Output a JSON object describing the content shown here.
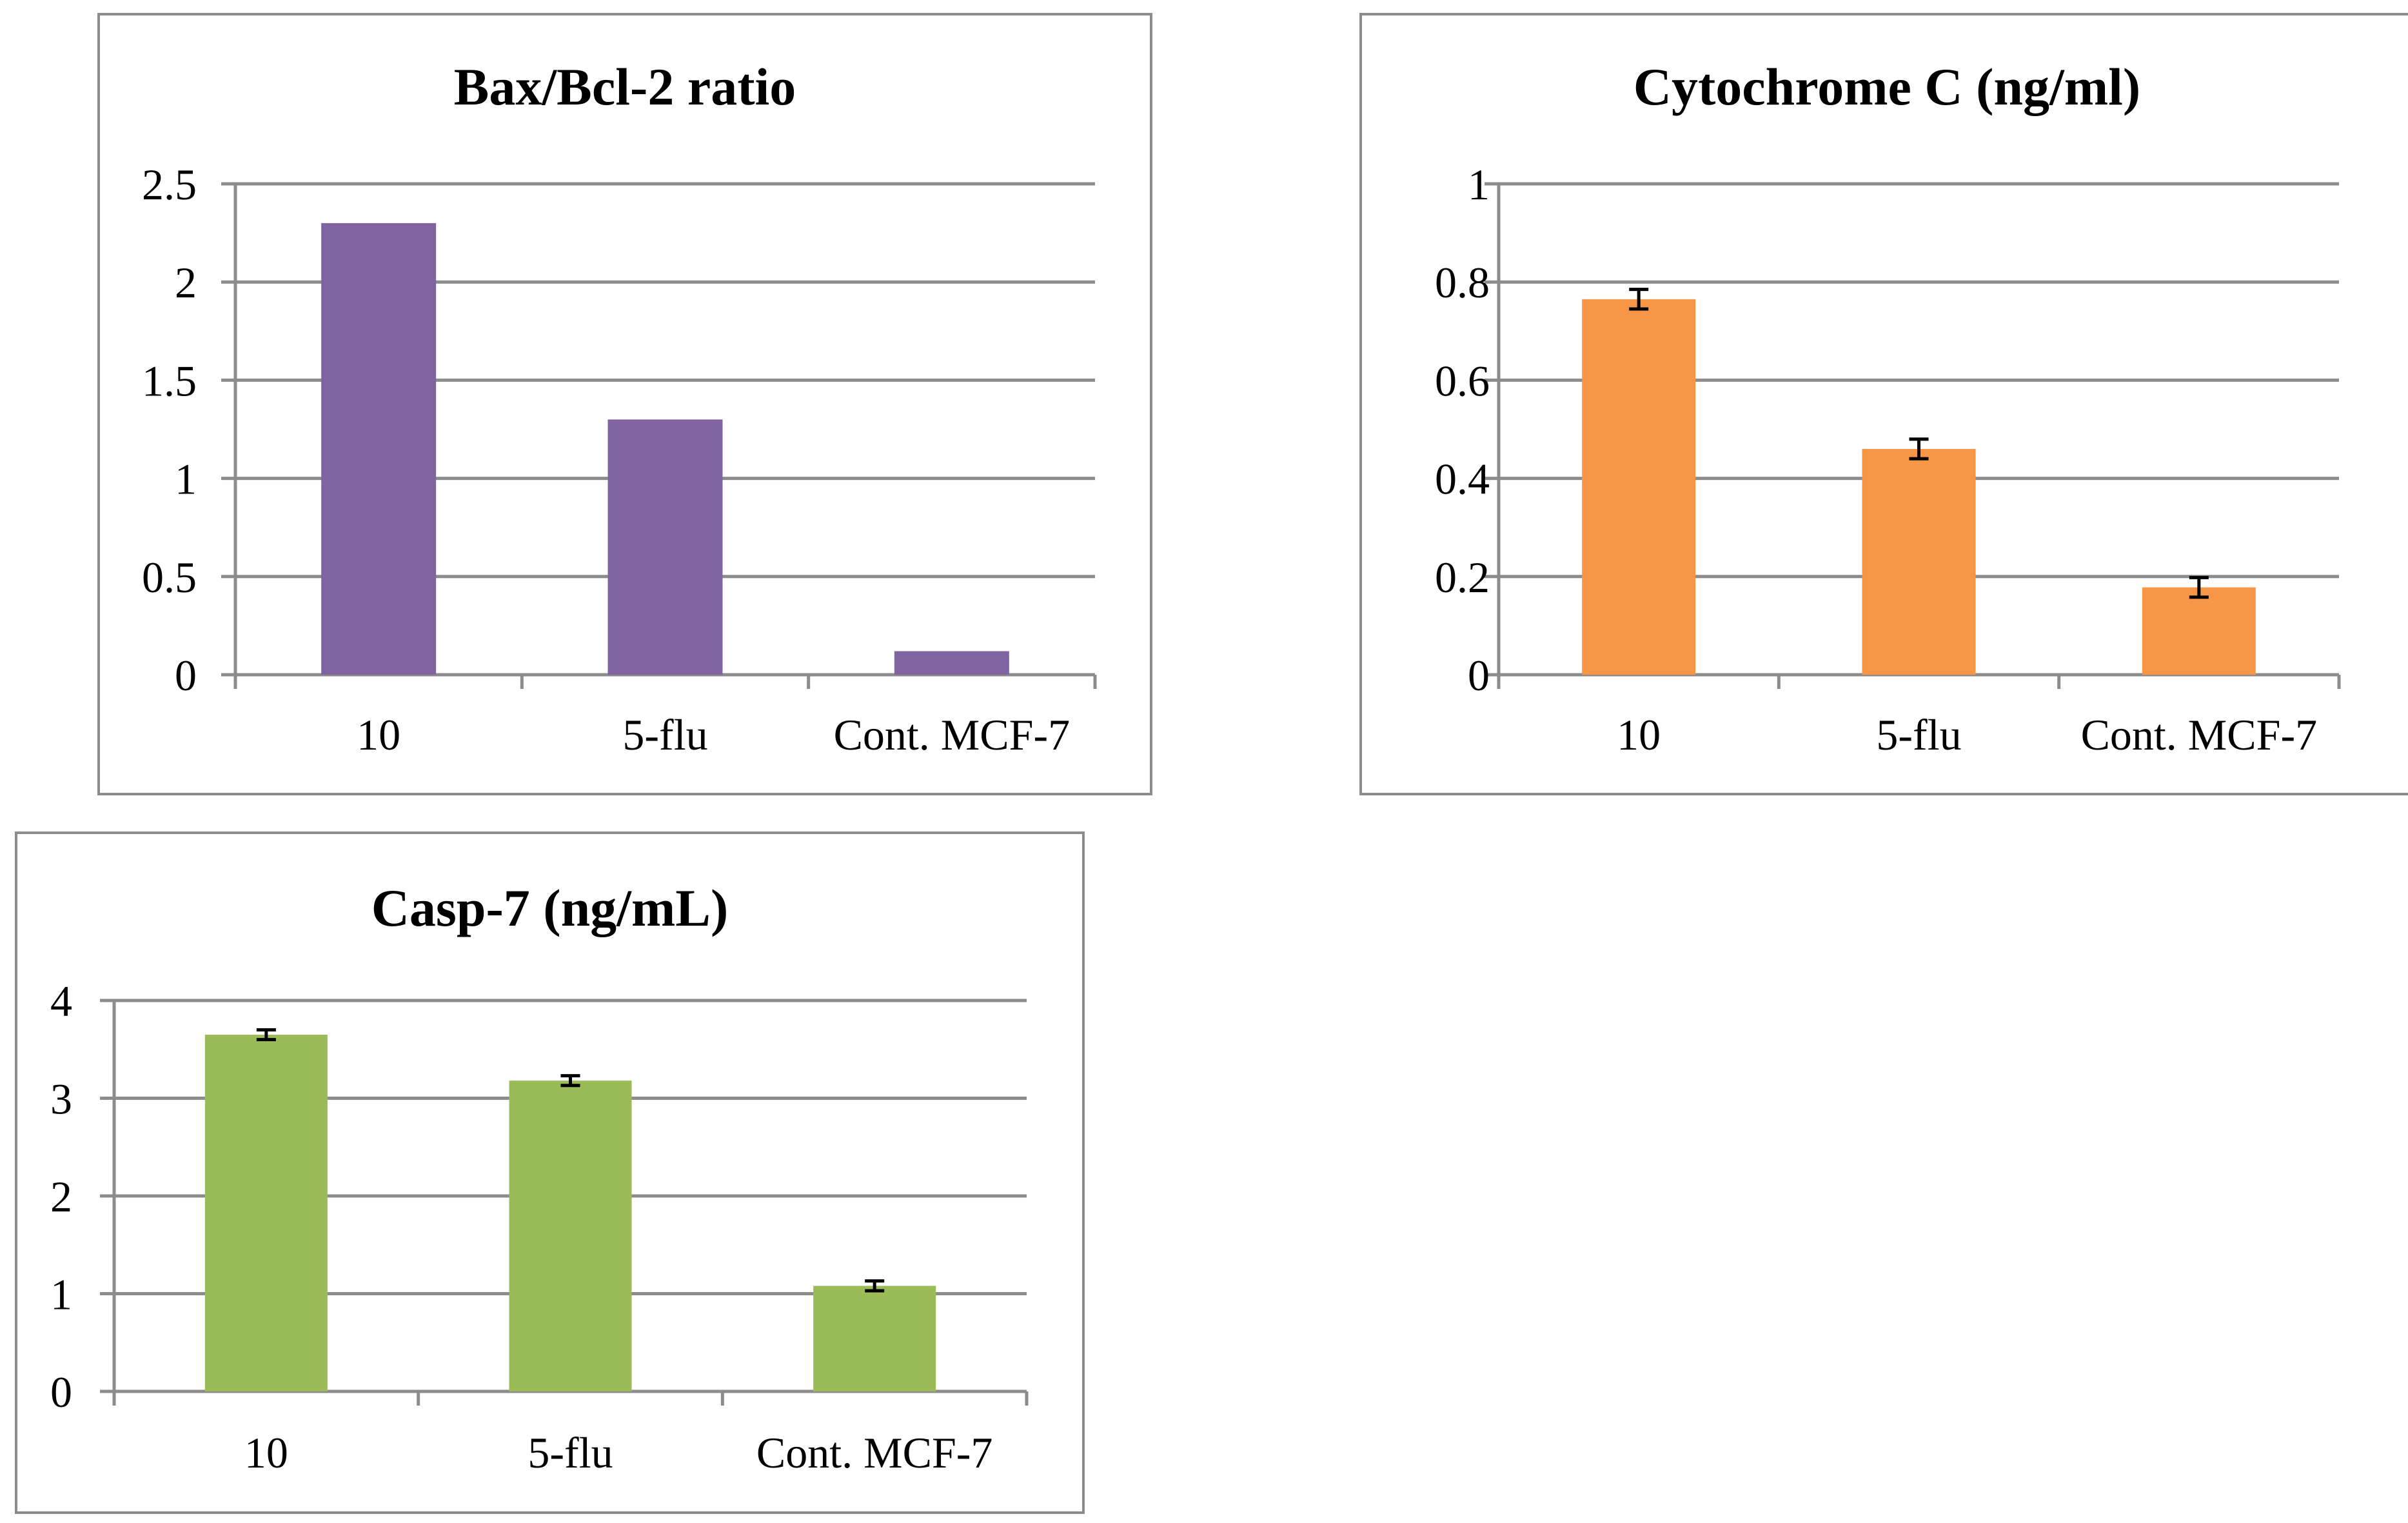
{
  "chart_data": [
    {
      "type": "bar",
      "title": "Bax/Bcl-2 ratio",
      "categories": [
        "10",
        "5-flu",
        "Cont. MCF-7"
      ],
      "values": [
        2.3,
        1.3,
        0.12
      ],
      "error": null,
      "ylim": [
        0,
        2.5
      ],
      "yticks": [
        0,
        0.5,
        1,
        1.5,
        2,
        2.5
      ],
      "ytick_labels": [
        "0",
        "0.5",
        "1",
        "1.5",
        "2",
        "2.5"
      ],
      "color": "#8064a2",
      "grid": true,
      "legend": "none"
    },
    {
      "type": "bar",
      "title": "Cytochrome C (ng/ml)",
      "categories": [
        "10",
        "5-flu",
        "Cont. MCF-7"
      ],
      "values": [
        0.765,
        0.46,
        0.178
      ],
      "error": [
        0.02,
        0.02,
        0.02
      ],
      "ylim": [
        0,
        1
      ],
      "yticks": [
        0,
        0.2,
        0.4,
        0.6,
        0.8,
        1
      ],
      "ytick_labels": [
        "0",
        "0.2",
        "0.4",
        "0.6",
        "0.8",
        "1"
      ],
      "color": "#f79646",
      "grid": true,
      "legend": "none"
    },
    {
      "type": "bar",
      "title": "Casp-7 (ng/mL)",
      "categories": [
        "10",
        "5-flu",
        "Cont. MCF-7"
      ],
      "values": [
        3.65,
        3.18,
        1.08
      ],
      "error": [
        0.05,
        0.05,
        0.05
      ],
      "ylim": [
        0,
        4
      ],
      "yticks": [
        0,
        1,
        2,
        3,
        4
      ],
      "ytick_labels": [
        "0",
        "1",
        "2",
        "3",
        "4"
      ],
      "color": "#9bbb59",
      "grid": true,
      "legend": "none"
    }
  ]
}
